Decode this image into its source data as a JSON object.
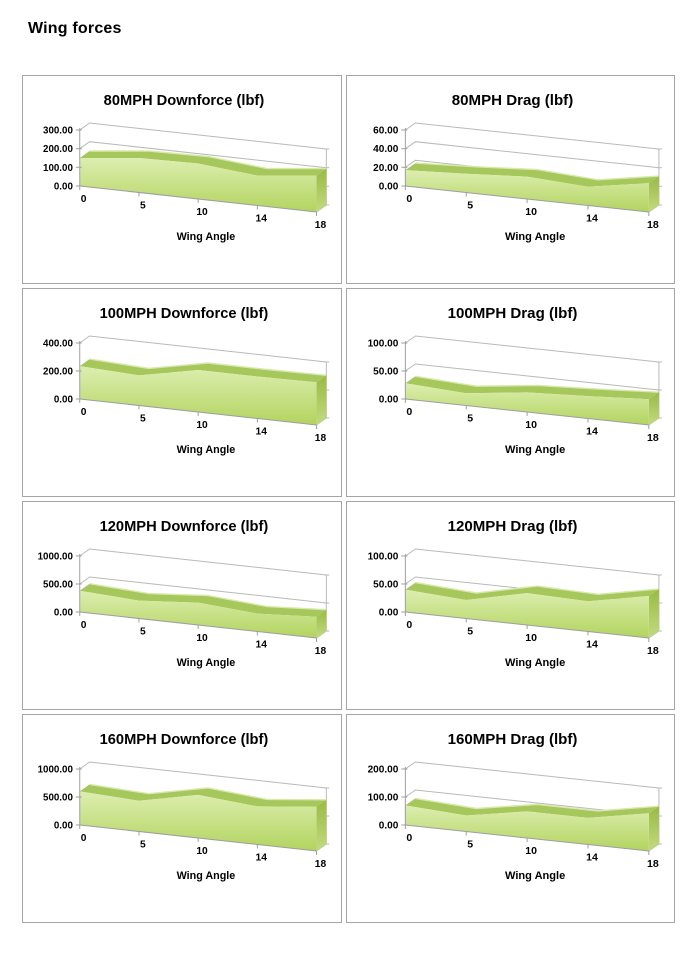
{
  "page": {
    "title": "Wing forces"
  },
  "colors": {
    "face_top": "#ddeeb0",
    "face_bottom": "#b2d45f",
    "ribbon": "#a6c75b",
    "ribbon_highlight": "#d8e9ab",
    "side_top": "#98ba45",
    "side_bottom": "#c3da80",
    "grid_line": "#b9b9b9",
    "axis_line": "#9e9e9e",
    "cell_border": "#a5a5a5",
    "text": "#000000"
  },
  "chart_data": [
    {
      "type": "area",
      "title": "80MPH Downforce (lbf)",
      "xlabel": "Wing Angle",
      "categories": [
        0,
        5,
        10,
        14,
        18
      ],
      "values": [
        150,
        185,
        190,
        160,
        195
      ],
      "y_ticks": [
        0,
        100,
        200,
        300
      ],
      "ylim": [
        0,
        300
      ],
      "legend": "none",
      "grid": "on"
    },
    {
      "type": "area",
      "title": "80MPH Drag (lbf)",
      "xlabel": "Wing Angle",
      "categories": [
        0,
        5,
        10,
        14,
        18
      ],
      "values": [
        17,
        20,
        24,
        20,
        31
      ],
      "y_ticks": [
        0,
        20,
        40,
        60
      ],
      "ylim": [
        0,
        60
      ],
      "legend": "none",
      "grid": "on"
    },
    {
      "type": "area",
      "title": "100MPH Downforce (lbf)",
      "xlabel": "Wing Angle",
      "categories": [
        0,
        5,
        10,
        14,
        18
      ],
      "values": [
        235,
        215,
        300,
        300,
        305
      ],
      "y_ticks": [
        0,
        200,
        400
      ],
      "ylim": [
        0,
        400
      ],
      "legend": "none",
      "grid": "on"
    },
    {
      "type": "area",
      "title": "100MPH Drag (lbf)",
      "xlabel": "Wing Angle",
      "categories": [
        0,
        5,
        10,
        14,
        18
      ],
      "values": [
        28,
        22,
        35,
        40,
        46
      ],
      "y_ticks": [
        0,
        50,
        100
      ],
      "ylim": [
        0,
        100
      ],
      "legend": "none",
      "grid": "on"
    },
    {
      "type": "area",
      "title": "120MPH Downforce (lbf)",
      "xlabel": "Wing Angle",
      "categories": [
        0,
        5,
        10,
        14,
        18
      ],
      "values": [
        380,
        320,
        400,
        320,
        380
      ],
      "y_ticks": [
        0,
        500,
        1000
      ],
      "ylim": [
        0,
        1000
      ],
      "legend": "none",
      "grid": "on"
    },
    {
      "type": "area",
      "title": "120MPH Drag (lbf)",
      "xlabel": "Wing Angle",
      "categories": [
        0,
        5,
        10,
        14,
        18
      ],
      "values": [
        40,
        33,
        57,
        54,
        75
      ],
      "y_ticks": [
        0,
        50,
        100
      ],
      "ylim": [
        0,
        100
      ],
      "legend": "none",
      "grid": "on"
    },
    {
      "type": "area",
      "title": "160MPH Downforce (lbf)",
      "xlabel": "Wing Angle",
      "categories": [
        0,
        5,
        10,
        14,
        18
      ],
      "values": [
        600,
        550,
        770,
        680,
        790
      ],
      "y_ticks": [
        0,
        500,
        1000
      ],
      "ylim": [
        0,
        1000
      ],
      "legend": "none",
      "grid": "on"
    },
    {
      "type": "area",
      "title": "160MPH Drag (lbf)",
      "xlabel": "Wing Angle",
      "categories": [
        0,
        5,
        10,
        14,
        18
      ],
      "values": [
        70,
        57,
        95,
        95,
        135
      ],
      "y_ticks": [
        0,
        100,
        200
      ],
      "ylim": [
        0,
        200
      ],
      "legend": "none",
      "grid": "on"
    }
  ]
}
